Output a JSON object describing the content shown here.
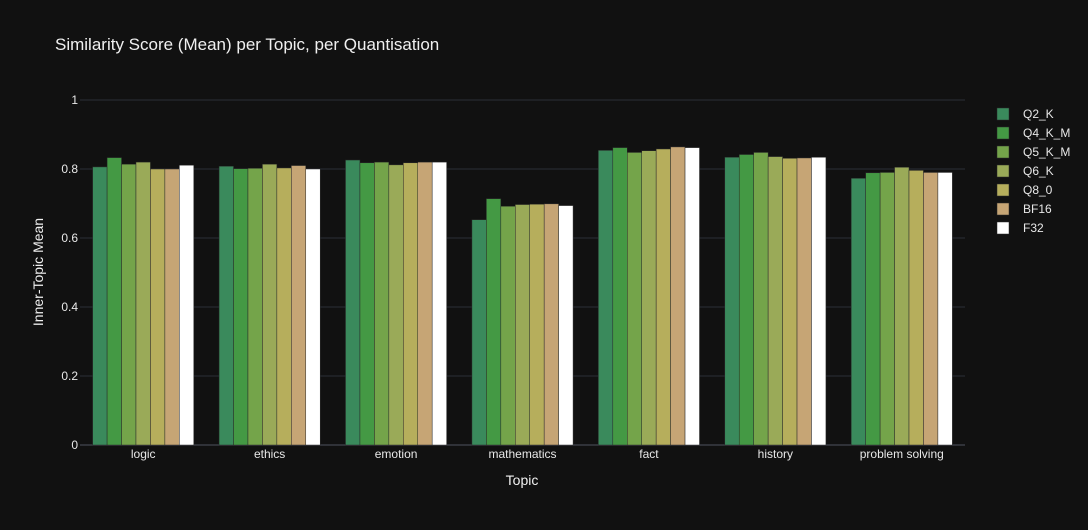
{
  "chart_data": {
    "type": "bar",
    "title": "Similarity Score (Mean) per Topic, per Quantisation",
    "xlabel": "Topic",
    "ylabel": "Inner-Topic Mean",
    "ylim": [
      0,
      1
    ],
    "yticks": [
      "0",
      "0.2",
      "0.4",
      "0.6",
      "0.8",
      "1"
    ],
    "ytick_values": [
      0,
      0.2,
      0.4,
      0.6,
      0.8,
      1
    ],
    "grid": true,
    "legend_position": "right",
    "categories": [
      "logic",
      "ethics",
      "emotion",
      "mathematics",
      "fact",
      "history",
      "problem solving"
    ],
    "series": [
      {
        "name": "Q2_K",
        "color": "#3a8a5c",
        "values": [
          0.806,
          0.808,
          0.826,
          0.653,
          0.854,
          0.834,
          0.773
        ]
      },
      {
        "name": "Q4_K_M",
        "color": "#449944",
        "values": [
          0.833,
          0.801,
          0.818,
          0.714,
          0.862,
          0.842,
          0.789
        ]
      },
      {
        "name": "Q5_K_M",
        "color": "#74a44a",
        "values": [
          0.814,
          0.802,
          0.82,
          0.692,
          0.848,
          0.848,
          0.79
        ]
      },
      {
        "name": "Q6_K",
        "color": "#9aaa58",
        "values": [
          0.82,
          0.814,
          0.812,
          0.697,
          0.853,
          0.836,
          0.805
        ]
      },
      {
        "name": "Q8_0",
        "color": "#b6ae5c",
        "values": [
          0.8,
          0.803,
          0.818,
          0.698,
          0.858,
          0.831,
          0.796
        ]
      },
      {
        "name": "BF16",
        "color": "#c6a575",
        "values": [
          0.8,
          0.81,
          0.82,
          0.699,
          0.864,
          0.832,
          0.79
        ]
      },
      {
        "name": "F32",
        "color": "#ffffff",
        "values": [
          0.811,
          0.8,
          0.82,
          0.694,
          0.862,
          0.834,
          0.79
        ]
      }
    ]
  }
}
